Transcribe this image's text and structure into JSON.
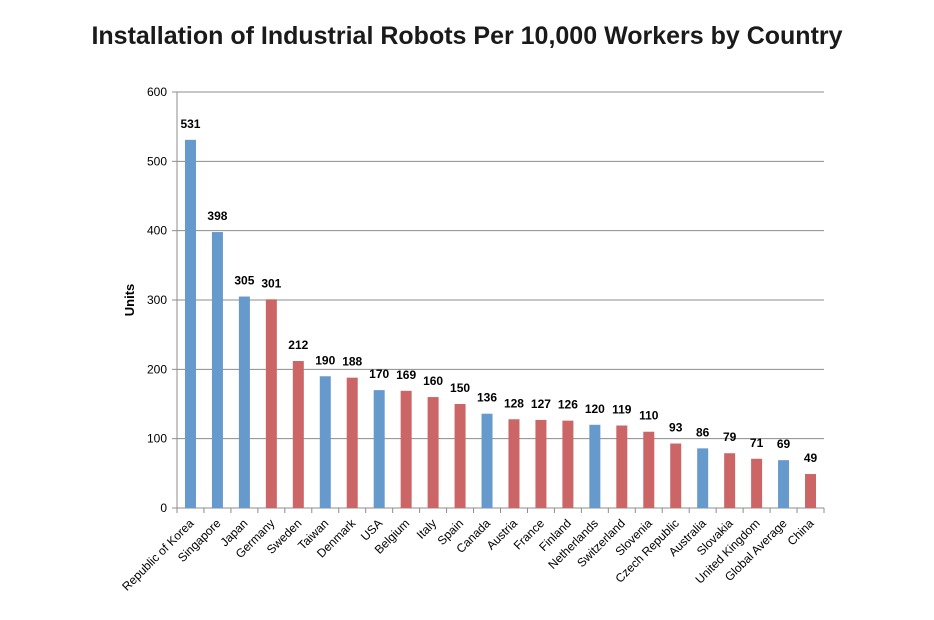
{
  "chart_data": {
    "type": "bar",
    "title": "Installation of Industrial Robots Per 10,000 Workers by Country",
    "xlabel": "",
    "ylabel": "Units",
    "ylim": [
      0,
      600
    ],
    "yticks": [
      0,
      100,
      200,
      300,
      400,
      500,
      600
    ],
    "grid": true,
    "legend": "none",
    "colors": {
      "blue": "#6699CC",
      "red": "#CC6666"
    },
    "categories": [
      "Republic of Korea",
      "Singapore",
      "Japan",
      "Germany",
      "Sweden",
      "Taiwan",
      "Denmark",
      "USA",
      "Belgium",
      "Italy",
      "Spain",
      "Canada",
      "Austria",
      "France",
      "Finland",
      "Netherlands",
      "Switzerland",
      "Slovenia",
      "Czech Republic",
      "Australia",
      "Slovakia",
      "United Kingdom",
      "Global Average",
      "China"
    ],
    "values": [
      531,
      398,
      305,
      301,
      212,
      190,
      188,
      170,
      169,
      160,
      150,
      136,
      128,
      127,
      126,
      120,
      119,
      110,
      93,
      86,
      79,
      71,
      69,
      49
    ],
    "bar_colors": [
      "blue",
      "blue",
      "blue",
      "red",
      "red",
      "blue",
      "red",
      "blue",
      "red",
      "red",
      "red",
      "blue",
      "red",
      "red",
      "red",
      "blue",
      "red",
      "red",
      "red",
      "blue",
      "red",
      "red",
      "blue",
      "red"
    ]
  }
}
